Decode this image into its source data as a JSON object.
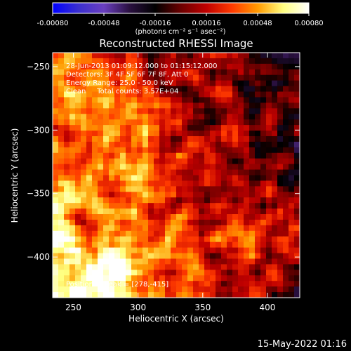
{
  "chart_data": {
    "type": "heatmap",
    "title": "Reconstructed RHESSI Image",
    "xlabel": "Heliocentric X (arcsec)",
    "ylabel": "Heliocentric Y (arcsec)",
    "xlim": [
      234,
      425
    ],
    "ylim": [
      -432,
      -239
    ],
    "xticks": [
      250,
      300,
      350,
      400
    ],
    "yticks": [
      -250,
      -300,
      -350,
      -400
    ],
    "colorbar": {
      "ticks": [
        -0.0008,
        -0.00048,
        -0.00016,
        0.00016,
        0.00048,
        0.0008
      ],
      "tick_labels": [
        "-0.00080",
        "-0.00048",
        "-0.00016",
        "0.00016",
        "0.00048",
        "0.00080"
      ],
      "range": [
        -0.0008,
        0.0008
      ],
      "units": "(photons cm⁻² s⁻¹ asec⁻²)",
      "colormap": "blue-white-red/yellow",
      "stops": [
        "#0000ff",
        "#3a2fcf",
        "#6a3fbf",
        "#2a1040",
        "#000000",
        "#6a0000",
        "#c00000",
        "#ff3a00",
        "#ff9a00",
        "#ffff80",
        "#ffffff"
      ]
    },
    "annotations": [
      "28-Jun-2013 01:09:12.000 to 01:15:12.000",
      "Detectors: 3F 4F 5F 6F 7F 8F, Att 0",
      "Energy Range: 25.0 - 50.0 keV",
      "Clean     Total counts: 3.57E+04"
    ],
    "peak_label": "Position of Peak = [278,-415]",
    "peak": [
      278,
      -415
    ],
    "grid": false,
    "intensity_structure": "bright orange-yellow emission dominating the left and lower-left, peaking near the bottom-left; purple/blue negative residuals across the upper right and right side"
  },
  "footer": {
    "timestamp": "15-May-2022 01:16"
  }
}
